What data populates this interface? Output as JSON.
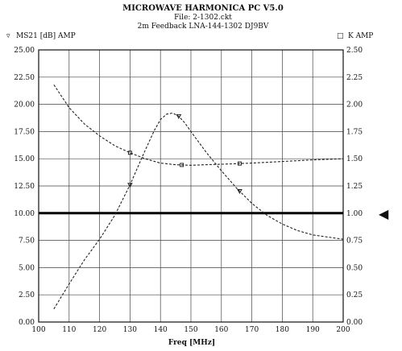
{
  "header": {
    "title": "MICROWAVE HARMONICA PC V5.0",
    "file": "File: 2-1302.ckt",
    "subtitle": "2m Feedback LNA-144-1302 DJ9BV"
  },
  "legend": {
    "left": "MS21 [dB] AMP",
    "left_marker": "▿",
    "right": "K AMP",
    "right_marker": "□"
  },
  "marker_arrow": "◀",
  "chart_data": {
    "type": "line",
    "xlabel": "Freq [MHz]",
    "ylabel": "MS21 [dB] AMP",
    "y2label": "K AMP",
    "xlim": [
      100,
      200
    ],
    "ylim": [
      0,
      25
    ],
    "y2lim": [
      0,
      2.5
    ],
    "grid": true,
    "xticks": [
      "100",
      "110",
      "120",
      "130",
      "140",
      "150",
      "160",
      "170",
      "180",
      "190",
      "200"
    ],
    "yticks": [
      "0.00",
      "2.50",
      "5.00",
      "7.50",
      "10.00",
      "12.50",
      "15.00",
      "17.50",
      "20.00",
      "22.50",
      "25.00"
    ],
    "y2ticks": [
      "0.00",
      "0.25",
      "0.50",
      "0.75",
      "1.00",
      "1.25",
      "1.50",
      "1.75",
      "2.00",
      "2.25",
      "2.50"
    ],
    "reference_line": {
      "axis": "y2",
      "value": 1.0
    },
    "series": [
      {
        "name": "MS21 [dB] AMP",
        "axis": "y",
        "style": "dashed",
        "x": [
          105,
          110,
          115,
          120,
          125,
          130,
          135,
          138,
          140,
          142,
          144,
          146,
          148,
          150,
          155,
          160,
          165,
          170,
          175,
          180,
          185,
          190,
          195,
          200
        ],
        "values": [
          1.2,
          3.5,
          5.7,
          7.6,
          9.8,
          12.6,
          15.8,
          17.6,
          18.6,
          19.1,
          19.2,
          18.9,
          18.3,
          17.5,
          15.6,
          13.9,
          12.3,
          10.9,
          9.8,
          9.0,
          8.4,
          8.0,
          7.8,
          7.6
        ]
      },
      {
        "name": "K AMP",
        "axis": "y2",
        "style": "dashed",
        "x": [
          105,
          110,
          115,
          120,
          125,
          130,
          135,
          140,
          145,
          150,
          155,
          160,
          165,
          170,
          180,
          190,
          200
        ],
        "values": [
          2.18,
          1.97,
          1.82,
          1.71,
          1.62,
          1.555,
          1.5,
          1.46,
          1.445,
          1.44,
          1.445,
          1.45,
          1.455,
          1.46,
          1.475,
          1.49,
          1.5
        ]
      }
    ],
    "markers": [
      {
        "series": 0,
        "x": [
          130,
          146,
          166
        ]
      },
      {
        "series": 1,
        "x": [
          130,
          147,
          166
        ]
      }
    ]
  }
}
